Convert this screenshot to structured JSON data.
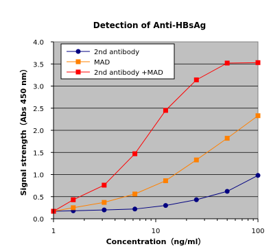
{
  "chart_data": {
    "type": "line",
    "title": "Detection of Anti-HBsAg",
    "xlabel": "Concentration（ng/ml）",
    "ylabel": "Signal strength（Abs 450 nm）",
    "xscale": "log",
    "xlim": [
      1,
      100
    ],
    "ylim": [
      0,
      4.0
    ],
    "x_ticks": [
      1,
      10,
      100
    ],
    "x_tick_labels": [
      "1",
      "10",
      "100"
    ],
    "y_ticks": [
      0,
      0.5,
      1.0,
      1.5,
      2.0,
      2.5,
      3.0,
      3.5,
      4.0
    ],
    "y_tick_labels": [
      "0.0",
      "0.5",
      "1.0",
      "1.5",
      "2.0",
      "2.5",
      "3.0",
      "3.5",
      "4.0"
    ],
    "grid": "horizontal",
    "legend_position": "top-left",
    "background_color": "#c0c0c0",
    "x": [
      1,
      1.56,
      3.13,
      6.25,
      12.5,
      25,
      50,
      100
    ],
    "series": [
      {
        "name": "2nd antibody",
        "color": "#000080",
        "marker": "circle",
        "values": [
          0.17,
          0.18,
          0.2,
          0.22,
          0.3,
          0.43,
          0.62,
          0.98
        ]
      },
      {
        "name": "MAD",
        "color": "#ff8000",
        "marker": "square",
        "values": [
          0.17,
          0.25,
          0.37,
          0.56,
          0.86,
          1.33,
          1.82,
          2.33
        ]
      },
      {
        "name": "2nd antibody +MAD",
        "color": "#ff0000",
        "marker": "square",
        "values": [
          0.17,
          0.43,
          0.76,
          1.47,
          2.45,
          3.14,
          3.52,
          3.53
        ]
      }
    ]
  }
}
